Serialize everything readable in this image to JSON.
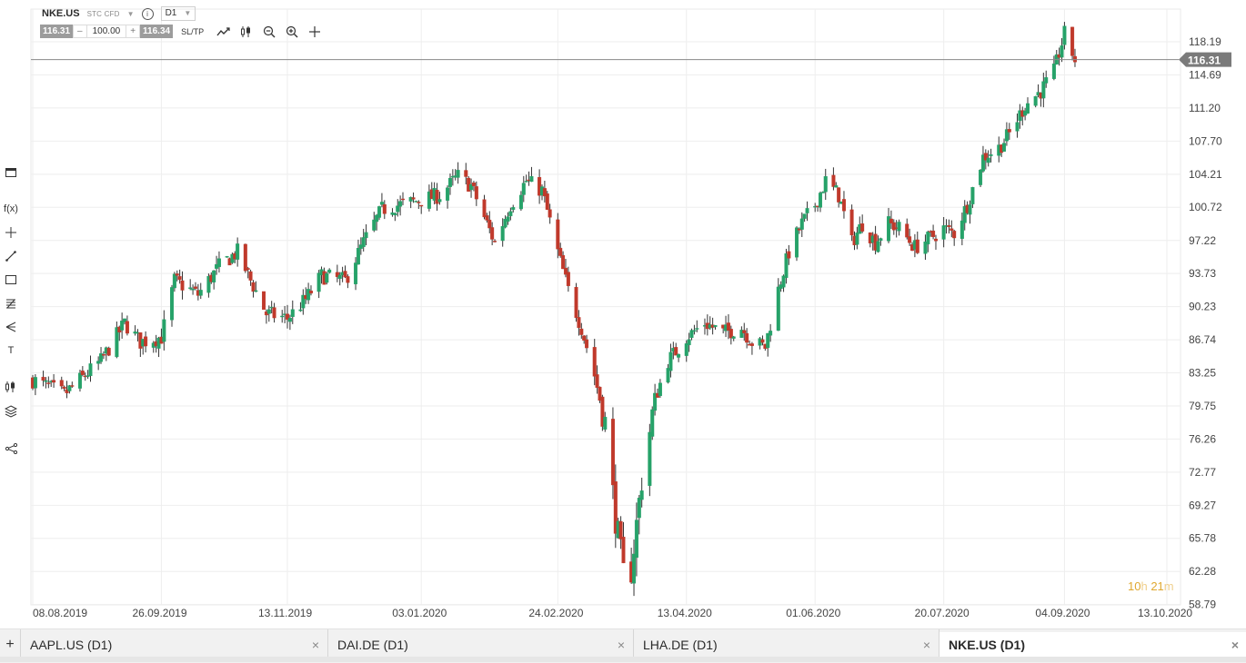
{
  "header": {
    "symbol": "NKE.US",
    "instrument_type": "STC CFD",
    "timeframe": "D1",
    "bid": "116.31",
    "volume": "100.00",
    "ask": "116.34",
    "minus": "–",
    "plus": "+",
    "sltp_label": "SL/TP",
    "icons": [
      "line-chart-icon",
      "candles-icon",
      "zoom-out-icon",
      "zoom-in-icon",
      "crosshair-icon"
    ]
  },
  "left_toolbar": {
    "items": [
      "window-icon",
      "indicators-icon",
      "crosshair-icon",
      "trendline-icon",
      "rectangle-icon",
      "fibonacci-icon",
      "pitchfork-icon",
      "text-icon",
      "candles-settings-icon",
      "layers-icon",
      "share-icon"
    ],
    "fx_label": "f(x)",
    "text_tool_label": "T"
  },
  "timer": {
    "hours": "10",
    "h_label": "h",
    "minutes": "21",
    "m_label": "m"
  },
  "tabs": [
    {
      "label": "AAPL.US (D1)",
      "active": false
    },
    {
      "label": "DAI.DE (D1)",
      "active": false
    },
    {
      "label": "LHA.DE (D1)",
      "active": false
    },
    {
      "label": "NKE.US (D1)",
      "active": true
    }
  ],
  "colors": {
    "up": "#26a269",
    "down": "#c0392b",
    "grid": "#eeeeee",
    "price_line": "#888888",
    "price_tag": "#7a7a7a"
  },
  "chart_data": {
    "type": "candlestick",
    "symbol": "NKE.US",
    "timeframe": "D1",
    "current_price": "116.31",
    "y_ticks": [
      "118.19",
      "114.69",
      "111.20",
      "107.70",
      "104.21",
      "100.72",
      "97.22",
      "93.73",
      "90.23",
      "86.74",
      "83.25",
      "79.75",
      "76.26",
      "72.77",
      "69.27",
      "65.78",
      "62.28",
      "58.79"
    ],
    "x_ticks": [
      "08.08.2019",
      "26.09.2019",
      "13.11.2019",
      "03.01.2020",
      "24.02.2020",
      "13.04.2020",
      "01.06.2020",
      "20.07.2020",
      "04.09.2020",
      "13.10.2020"
    ],
    "ylim": [
      58.79,
      121.0
    ],
    "x_range": [
      "08.08.2019",
      "13.10.2020"
    ],
    "close_anchors": [
      [
        "08.08.2019",
        82.5
      ],
      [
        "20.08.2019",
        81.0
      ],
      [
        "03.09.2019",
        84.5
      ],
      [
        "12.09.2019",
        88.5
      ],
      [
        "18.09.2019",
        86.5
      ],
      [
        "26.09.2019",
        87.0
      ],
      [
        "01.10.2019",
        93.0
      ],
      [
        "10.10.2019",
        91.5
      ],
      [
        "18.10.2019",
        94.5
      ],
      [
        "25.10.2019",
        96.0
      ],
      [
        "30.10.2019",
        93.0
      ],
      [
        "05.11.2019",
        89.5
      ],
      [
        "13.11.2019",
        89.0
      ],
      [
        "20.11.2019",
        91.0
      ],
      [
        "26.11.2019",
        93.5
      ],
      [
        "05.12.2019",
        93.0
      ],
      [
        "12.12.2019",
        97.0
      ],
      [
        "19.12.2019",
        100.5
      ],
      [
        "26.12.2019",
        101.0
      ],
      [
        "03.01.2020",
        101.5
      ],
      [
        "10.01.2020",
        102.0
      ],
      [
        "17.01.2020",
        104.0
      ],
      [
        "22.01.2020",
        103.0
      ],
      [
        "28.01.2020",
        99.0
      ],
      [
        "31.01.2020",
        97.0
      ],
      [
        "06.02.2020",
        101.0
      ],
      [
        "12.02.2020",
        103.5
      ],
      [
        "18.02.2020",
        102.5
      ],
      [
        "24.02.2020",
        96.0
      ],
      [
        "28.02.2020",
        92.0
      ],
      [
        "04.03.2020",
        88.0
      ],
      [
        "09.03.2020",
        83.0
      ],
      [
        "13.03.2020",
        78.0
      ],
      [
        "17.03.2020",
        68.0
      ],
      [
        "20.03.2020",
        62.0
      ],
      [
        "23.03.2020",
        62.5
      ],
      [
        "27.03.2020",
        72.0
      ],
      [
        "01.04.2020",
        80.5
      ],
      [
        "06.04.2020",
        84.5
      ],
      [
        "09.04.2020",
        85.5
      ],
      [
        "13.04.2020",
        87.0
      ],
      [
        "20.04.2020",
        88.5
      ],
      [
        "27.04.2020",
        87.5
      ],
      [
        "04.05.2020",
        88.0
      ],
      [
        "08.05.2020",
        86.5
      ],
      [
        "13.05.2020",
        86.0
      ],
      [
        "18.05.2020",
        92.0
      ],
      [
        "22.05.2020",
        96.0
      ],
      [
        "27.05.2020",
        99.0
      ],
      [
        "01.06.2020",
        101.0
      ],
      [
        "05.06.2020",
        103.5
      ],
      [
        "10.06.2020",
        102.0
      ],
      [
        "15.06.2020",
        97.0
      ],
      [
        "19.06.2020",
        99.0
      ],
      [
        "24.06.2020",
        97.0
      ],
      [
        "29.06.2020",
        99.0
      ],
      [
        "03.07.2020",
        98.5
      ],
      [
        "09.07.2020",
        96.5
      ],
      [
        "15.07.2020",
        97.5
      ],
      [
        "20.07.2020",
        98.5
      ],
      [
        "24.07.2020",
        98.0
      ],
      [
        "29.07.2020",
        101.0
      ],
      [
        "04.08.2020",
        106.0
      ],
      [
        "10.08.2020",
        107.0
      ],
      [
        "14.08.2020",
        108.5
      ],
      [
        "20.08.2020",
        111.5
      ],
      [
        "26.08.2020",
        113.0
      ],
      [
        "31.08.2020",
        115.0
      ],
      [
        "04.09.2020",
        119.0
      ],
      [
        "08.09.2020",
        116.31
      ]
    ]
  }
}
